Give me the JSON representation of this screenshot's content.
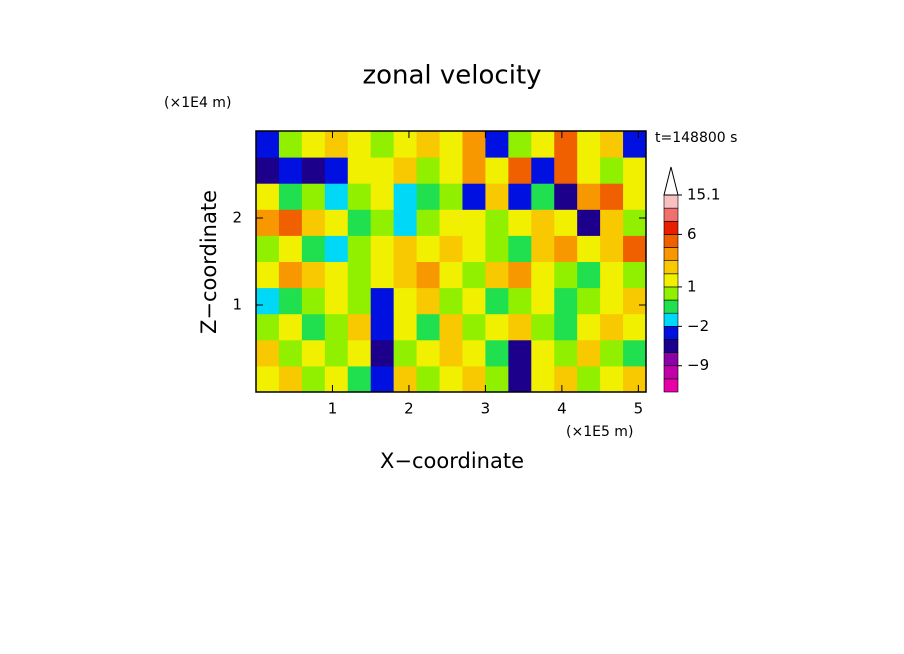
{
  "chart_data": {
    "type": "contour",
    "title": "zonal velocity",
    "x_label": "X−coordinate",
    "y_label": "Z−coordinate",
    "x_unit": "(×1E5 m)",
    "y_unit": "(×1E4 m)",
    "annotation": "t=148800 s",
    "xlim": [
      0,
      5.1
    ],
    "ylim": [
      0,
      3
    ],
    "xticks": [
      1,
      2,
      3,
      4,
      5
    ],
    "yticks": [
      1,
      2
    ],
    "x": [
      0.15,
      0.45,
      0.75,
      1.05,
      1.35,
      1.65,
      1.95,
      2.25,
      2.55,
      2.85,
      3.15,
      3.45,
      3.75,
      4.05,
      4.35,
      4.65,
      4.95
    ],
    "y": [
      0.15,
      0.45,
      0.75,
      1.05,
      1.35,
      1.65,
      1.95,
      2.25,
      2.55,
      2.85
    ],
    "z": [
      [
        1,
        2,
        0,
        1,
        -1,
        -4,
        2,
        0,
        1,
        2,
        0,
        -5,
        1,
        2,
        0,
        1,
        2
      ],
      [
        2,
        0,
        1,
        0,
        1,
        -5,
        0,
        1,
        2,
        1,
        -1,
        -6,
        1,
        0,
        2,
        0,
        -1
      ],
      [
        0,
        1,
        -1,
        0,
        2,
        -4,
        1,
        -1,
        2,
        0,
        1,
        2,
        0,
        -1,
        1,
        2,
        1
      ],
      [
        -2,
        -1,
        0,
        1,
        0,
        -3,
        1,
        2,
        0,
        1,
        -1,
        0,
        1,
        -1,
        0,
        1,
        2
      ],
      [
        1,
        3,
        2,
        1,
        0,
        1,
        2,
        3,
        1,
        0,
        2,
        3,
        1,
        0,
        -1,
        1,
        0
      ],
      [
        0,
        1,
        -1,
        -2,
        0,
        1,
        2,
        1,
        2,
        1,
        0,
        -1,
        2,
        3,
        1,
        2,
        4
      ],
      [
        3,
        4,
        2,
        1,
        -1,
        0,
        -2,
        0,
        1,
        1,
        0,
        1,
        2,
        1,
        -5,
        2,
        0
      ],
      [
        1,
        -1,
        0,
        -2,
        0,
        1,
        -2,
        -1,
        0,
        -4,
        2,
        -3,
        -1,
        -5,
        3,
        4,
        1
      ],
      [
        -5,
        -3,
        -5,
        -3,
        1,
        1,
        2,
        0,
        1,
        3,
        1,
        4,
        -3,
        4,
        1,
        0,
        1
      ],
      [
        -3,
        0,
        1,
        2,
        1,
        0,
        1,
        2,
        1,
        3,
        -3,
        0,
        1,
        4,
        1,
        2,
        -4
      ]
    ],
    "colorbar": {
      "levels": [
        -15,
        -12,
        -9,
        -6,
        -4,
        -2,
        -1,
        0,
        1,
        2,
        3,
        4,
        6,
        9,
        12,
        15.1
      ],
      "colors": [
        "#e800a8",
        "#c000a8",
        "#8c00a8",
        "#1c008c",
        "#0010e0",
        "#00d8f8",
        "#20e050",
        "#90f000",
        "#f0f000",
        "#f8c800",
        "#f89800",
        "#f06000",
        "#e82000",
        "#f07070",
        "#f8c0c0"
      ],
      "ticks": [
        15.1,
        6,
        1,
        {
          "value": -2,
          "label": "−2"
        },
        {
          "value": -9,
          "label": "−9"
        }
      ]
    }
  }
}
